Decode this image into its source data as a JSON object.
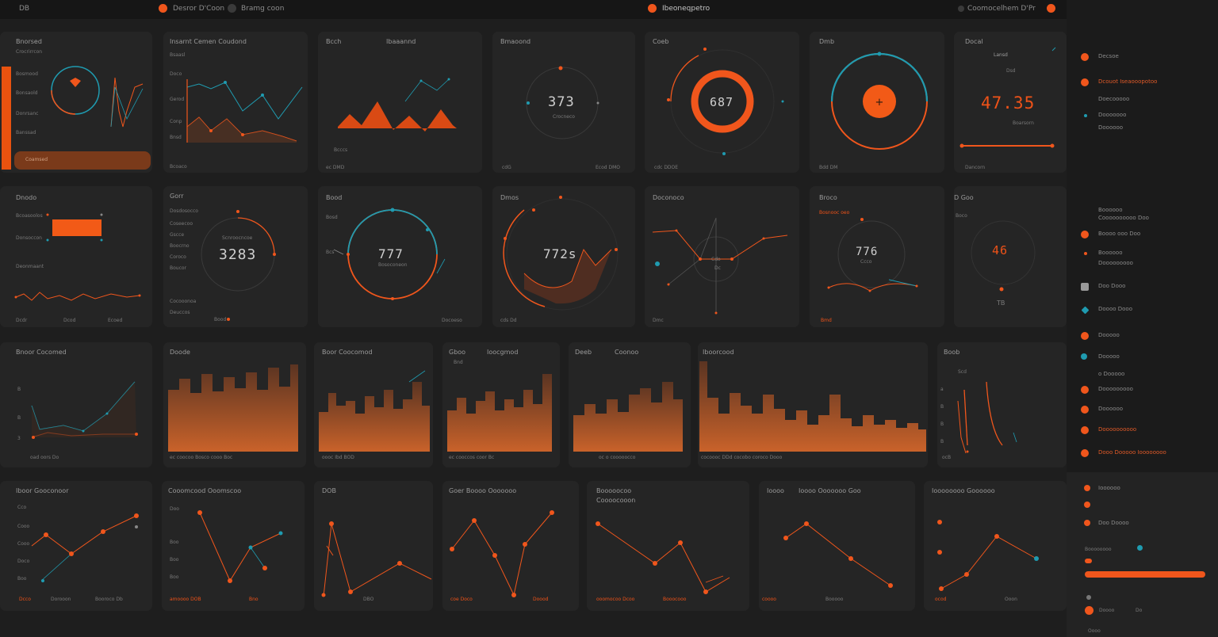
{
  "colors": {
    "accent": "#f0561c",
    "teal": "#1f9bb0",
    "panel": "#252525",
    "bg": "#1e1e1e"
  },
  "topbar": {
    "left_label": "DB",
    "menu1": "Desror D'Coon",
    "menu2": "Bramg coon",
    "title": "Ibeoneqpetro",
    "right_label": "Coomocelhem D'Pr"
  },
  "panels": {
    "p1": {
      "title": "Bnorsed",
      "labels": [
        "Crocrirrcon",
        "Bosmood",
        "Bonsaold",
        "Donrsanc",
        "Banssad"
      ],
      "button": "Coamsed"
    },
    "p2": {
      "title": "Insarnt Cemen Coudond",
      "sub": "Bsaasl",
      "ylabels": [
        "Doco",
        "Gerod",
        "Conp",
        "Bnsd"
      ],
      "footer": "Bcoaco"
    },
    "p3": {
      "title": "Bcch",
      "title2": "Ibaaannd",
      "x_label": "Bcccs",
      "footer": "ec DMD"
    },
    "p4": {
      "title": "Bmaoond",
      "value": "373",
      "sub": "Crocneco",
      "foot_left": "cdG",
      "foot_right": "Ecod DMO"
    },
    "p5": {
      "title": "Coeb",
      "value": "687",
      "foot": "cdc DDOE"
    },
    "p6": {
      "title": "Dmb",
      "foot": "Bdd DM"
    },
    "p7": {
      "title": "Docal",
      "label": "Lansd",
      "label2": "Dsd",
      "value": "47.35",
      "sub": "Boarsorn",
      "foot": "Dancorn"
    },
    "p8": {
      "title": "Dnodo",
      "labels": [
        "Bcoasoolos",
        "Donsoccon"
      ],
      "sub": "Deonmaant",
      "x1": "Dcdr",
      "x2": "Dcod",
      "x3": "Ecoed"
    },
    "p9": {
      "title": "Gorr",
      "labels": [
        "Dosdosocco",
        "Coseecoo",
        "Gscce",
        "Boocrno",
        "Coroco",
        "Boucor",
        "Cocooonoa",
        "Deuccos"
      ],
      "value": "3283",
      "sub": "Scnroocncoe",
      "foot": "Bood"
    },
    "p10": {
      "title": "Bood",
      "labels": [
        "Bosd",
        "Bcs"
      ],
      "value": "777",
      "sub": "Bosoconeon",
      "foot": "Docoeso"
    },
    "p11": {
      "title": "Dmos",
      "value": "772s",
      "foot": "cds Dd"
    },
    "p12": {
      "title": "Doconoco",
      "value": "Cdo",
      "sub": "Dc",
      "foot": "Dmc"
    },
    "p13": {
      "title": "Broco",
      "sub": "Bosnooc oeo",
      "value": "776",
      "sub2": "Ccco",
      "foot": "Bmd"
    },
    "p14": {
      "title": "D Goo",
      "label": "Boco",
      "value": "46",
      "foot": "TB"
    },
    "p15": {
      "title": "Bnoor Cocomed",
      "ylabels": [
        "B",
        "B",
        "3"
      ],
      "foot": "oad oors Do"
    },
    "p16": {
      "title": "Doode",
      "foot": "ec coocoo Bosco cooo Boc"
    },
    "p17": {
      "title": "Boor Coocomod",
      "foot": "oooc Ibd BOD"
    },
    "p18": {
      "title": "Gboo",
      "title2": "Ioocgmod",
      "sub": "Bnd",
      "foot": "ec cooccos coor Bc"
    },
    "p19": {
      "title": "Deeb",
      "title2": "Coonoo",
      "foot": "oc o cooooocco"
    },
    "p20": {
      "title": "Iboorcood",
      "foot": "cocoooc DDd cocobo coroco Dooo"
    },
    "p21": {
      "title": "Boob",
      "sub": "Scd",
      "ylabels": [
        "a",
        "B",
        "B",
        "B"
      ],
      "foot": "ocB"
    },
    "p22": {
      "title": "Iboor Gooconoor",
      "ylabels": [
        "Cco",
        "Cooo",
        "Cooo",
        "Doco",
        "Boo"
      ],
      "foot_l": "Dcco",
      "foot_m": "Dorooon",
      "foot_r": "Booroco Db"
    },
    "p23": {
      "title": "Cooomcood Ooomscoo",
      "ylabels": [
        "Doo",
        "Boo",
        "Boo",
        "Boo"
      ],
      "foot_l": "amoooo DOB",
      "foot_r": "Bno"
    },
    "p24": {
      "title": "DOB",
      "foot": "DBO"
    },
    "p25": {
      "title": "Goer Boooo Ooooooo",
      "foot_l": "coe Doco",
      "foot_r": "Doood"
    },
    "p26": {
      "title": "Booooocoo",
      "title2": "Coooocooon",
      "foot_l": "ooomocoo Dcoo",
      "foot_r": "Booocooo"
    },
    "p27": {
      "title": "Ioooo",
      "title2": "Ioooo Ooooooo Goo",
      "foot_l": "coooo",
      "foot_r": "Booooo"
    },
    "p28": {
      "title": "Ioooooooo Goooooo",
      "foot_l": "ocod",
      "foot_r": "Ooon"
    }
  },
  "sidebar": {
    "items": [
      {
        "label": "Decsoe",
        "color": "#f0561c"
      },
      {
        "label": "Dcouot Iseaooopotoo",
        "color": "#f0561c",
        "highlight": true
      },
      {
        "label": "Doecooooo",
        "color": "#1d1d1d"
      },
      {
        "label": "Dooooooo",
        "color": "#1f9bb0"
      },
      {
        "label": "Doooooo",
        "color": "#1d1d1d"
      },
      {
        "label": "Boooooo",
        "color": "#1d1d1d"
      },
      {
        "label": "Coooooooooo Doo",
        "color": "#1d1d1d"
      },
      {
        "label": "Boooo ooo Doo",
        "color": "#f0561c"
      },
      {
        "label": "Boooooo",
        "color": "#f0561c"
      },
      {
        "label": "Dooooooooo",
        "color": "#1d1d1d"
      },
      {
        "label": "Doo Dooo",
        "color": "#9a9a9a"
      },
      {
        "label": "Doooo Dooo",
        "color": "#1f9bb0"
      },
      {
        "label": "Dooooo",
        "color": "#f0561c"
      },
      {
        "label": "Dooooo",
        "color": "#1f9bb0"
      },
      {
        "label": "o Dooooo",
        "color": "#1d1d1d"
      },
      {
        "label": "Dooooooooo",
        "color": "#f0561c"
      },
      {
        "label": "Doooooo",
        "color": "#f0561c"
      },
      {
        "label": "Doooooooooo",
        "color": "#f0561c"
      },
      {
        "label": "Dooo Dooooo Ioooooooo",
        "color": "#f0561c"
      },
      {
        "label": "Ioooooo",
        "color": "#f0561c"
      },
      {
        "label": "Doo Doooo",
        "color": "#f0561c"
      }
    ],
    "lower": {
      "sub": "Boooooooo",
      "footer": "Doooo",
      "foot_val": "Do",
      "bottom": "Oooo"
    }
  }
}
